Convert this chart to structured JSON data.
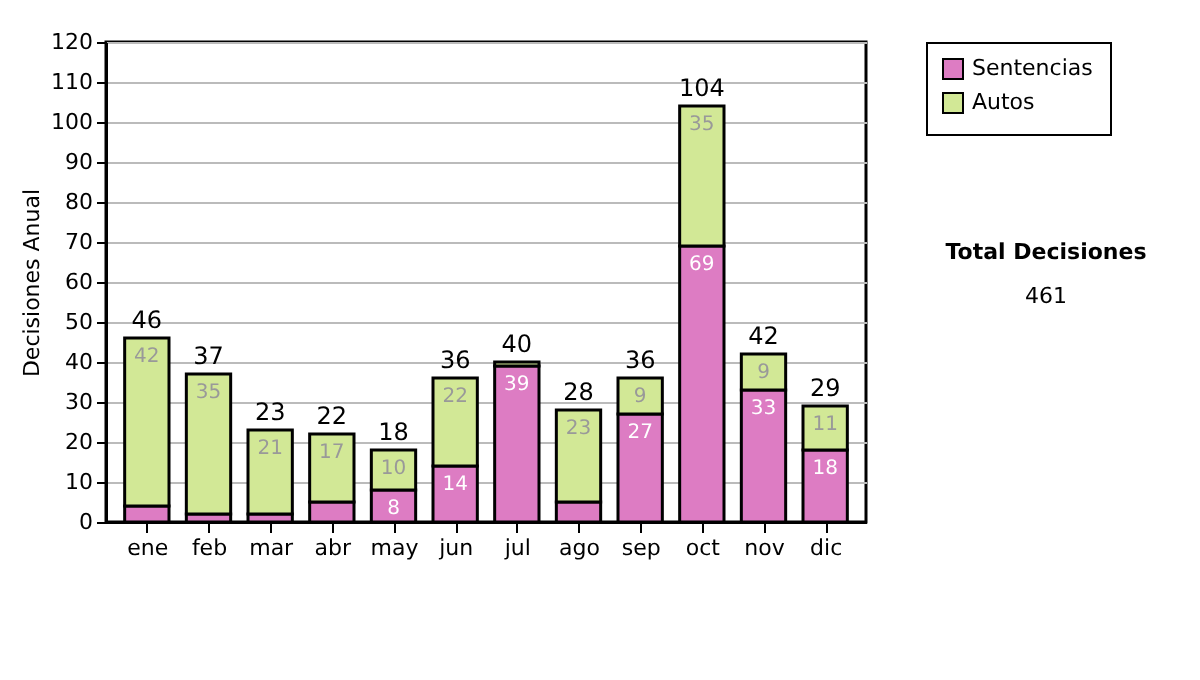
{
  "chart_data": {
    "type": "bar",
    "stacked": true,
    "ylabel": "Decisiones Anual",
    "categories": [
      "ene",
      "feb",
      "mar",
      "abr",
      "may",
      "jun",
      "jul",
      "ago",
      "sep",
      "oct",
      "nov",
      "dic"
    ],
    "series": [
      {
        "name": "Sentencias",
        "color": "#dd7cc3",
        "values": [
          4,
          2,
          2,
          5,
          8,
          14,
          39,
          5,
          27,
          69,
          33,
          18
        ],
        "value_labels": [
          null,
          null,
          null,
          null,
          "8",
          "14",
          "39",
          null,
          "27",
          "69",
          "33",
          "18"
        ]
      },
      {
        "name": "Autos",
        "color": "#d2e896",
        "values": [
          42,
          35,
          21,
          17,
          10,
          22,
          1,
          23,
          9,
          35,
          9,
          11
        ],
        "value_labels": [
          "42",
          "35",
          "21",
          "17",
          "10",
          "22",
          null,
          "23",
          "9",
          "35",
          "9",
          "11"
        ]
      }
    ],
    "totals": [
      "46",
      "37",
      "23",
      "22",
      "18",
      "36",
      "40",
      "28",
      "36",
      "104",
      "42",
      "29"
    ],
    "ylim": [
      0,
      120
    ],
    "yticks": [
      0,
      10,
      20,
      30,
      40,
      50,
      60,
      70,
      80,
      90,
      100,
      110,
      120
    ],
    "grid": "y",
    "legend": "right",
    "annotations": [
      "Total Decisiones",
      "461"
    ]
  }
}
